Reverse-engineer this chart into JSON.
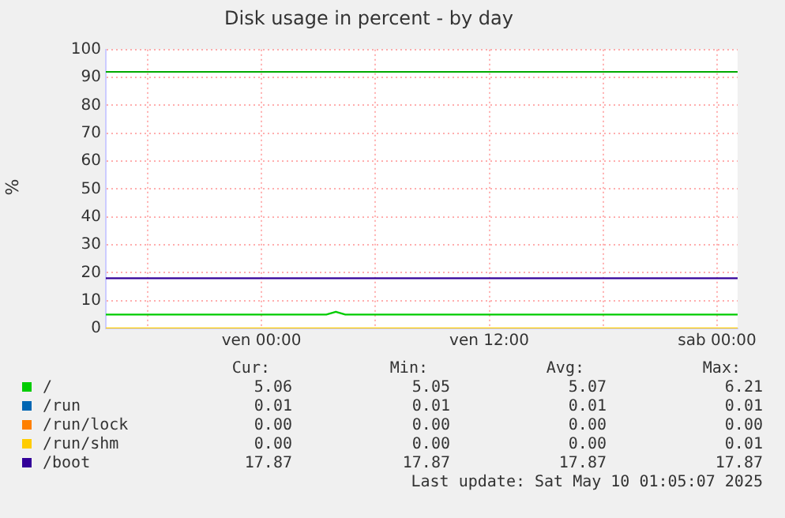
{
  "chart_data": {
    "type": "line",
    "title": "Disk usage in percent - by day",
    "ylabel": "%",
    "xlim": [
      "2025-05-08T15:48",
      "2025-05-10T01:05"
    ],
    "xticks": [
      {
        "value": "2025-05-08T18:00",
        "label": null
      },
      {
        "value": "2025-05-09T00:00",
        "label": "ven 00:00"
      },
      {
        "value": "2025-05-09T06:00",
        "label": null
      },
      {
        "value": "2025-05-09T12:00",
        "label": "ven 12:00"
      },
      {
        "value": "2025-05-09T18:00",
        "label": null
      },
      {
        "value": "2025-05-10T00:00",
        "label": "sab 00:00"
      }
    ],
    "ylim": [
      0,
      100
    ],
    "yticks": [
      0,
      10,
      20,
      30,
      40,
      50,
      60,
      70,
      80,
      90,
      100
    ],
    "grid": true,
    "legend": "bottom",
    "marker": "none",
    "line_style": "solid",
    "ref_lines": [
      {
        "axis": "y",
        "value": 92,
        "color": "#00aa00"
      }
    ],
    "series": [
      {
        "name": "/",
        "color": "#00cc00",
        "x": [
          "2025-05-08T15:48",
          "2025-05-09T03:25",
          "2025-05-09T03:55",
          "2025-05-09T04:25",
          "2025-05-10T01:05"
        ],
        "values": [
          5,
          5,
          6,
          5,
          5
        ]
      },
      {
        "name": "/run",
        "color": "#0066b3"
      },
      {
        "name": "/run/lock",
        "color": "#ff8000"
      },
      {
        "name": "/run/shm",
        "color": "#ffcc00",
        "x": [
          "2025-05-08T15:48",
          "2025-05-10T01:05"
        ],
        "values": [
          0,
          0
        ]
      },
      {
        "name": "/boot",
        "color": "#330099",
        "x": [
          "2025-05-08T15:48",
          "2025-05-10T01:05"
        ],
        "values": [
          18,
          18
        ]
      }
    ],
    "annotations": [
      "Cur:",
      "Min:",
      "Avg:",
      "Max:",
      "5.06",
      "5.05",
      "5.07",
      "6.21",
      "0.01",
      "0.01",
      "0.01",
      "0.01",
      "0.00",
      "0.00",
      "0.00",
      "0.00",
      "0.00",
      "0.00",
      "0.00",
      "0.01",
      "17.87",
      "17.87",
      "17.87",
      "17.87",
      "Last update: Sat May 10 01:05:07 2025"
    ]
  }
}
